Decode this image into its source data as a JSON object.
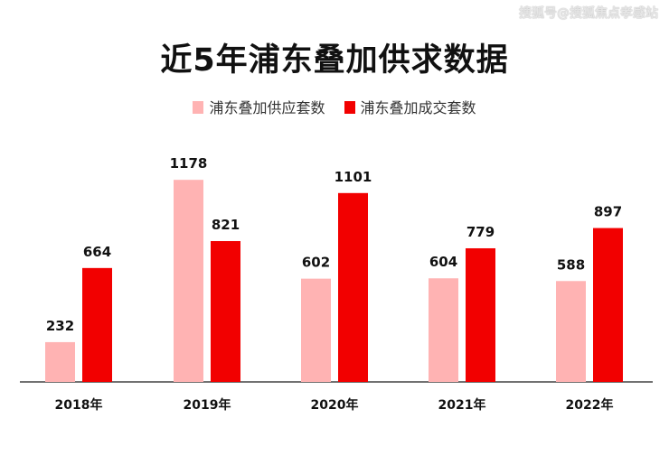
{
  "watermark": "搜狐号@搜狐焦点孝感站",
  "chart_data": {
    "type": "bar",
    "title": "近5年浦东叠加供求数据",
    "categories": [
      "2018年",
      "2019年",
      "2020年",
      "2021年",
      "2022年"
    ],
    "series": [
      {
        "name": "浦东叠加供应套数",
        "color": "#ffb3b3",
        "values": [
          232,
          1178,
          602,
          604,
          588
        ]
      },
      {
        "name": "浦东叠加成交套数",
        "color": "#f20000",
        "values": [
          664,
          821,
          1101,
          779,
          897
        ]
      }
    ],
    "legend_position": "top-center",
    "grid": false
  }
}
